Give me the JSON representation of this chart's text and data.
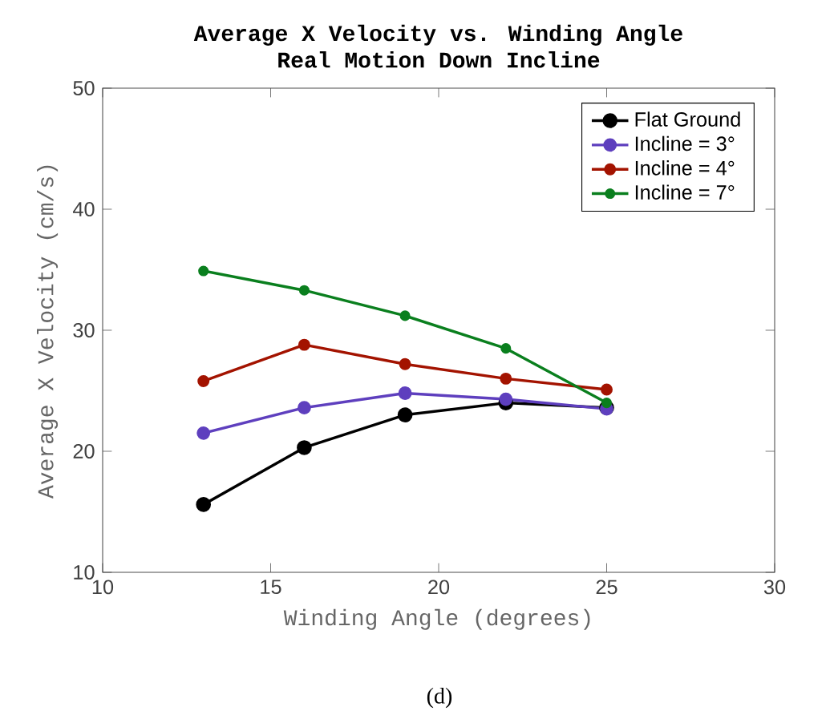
{
  "chart_data": {
    "type": "line",
    "title": "Average X Velocity vs. Winding Angle",
    "subtitle": "Real Motion Down Incline",
    "xlabel": "Winding Angle (degrees)",
    "ylabel": "Average X Velocity (cm/s)",
    "x": [
      13,
      16,
      19,
      22,
      25
    ],
    "series": [
      {
        "name": "Flat Ground",
        "color": "#000000",
        "values": [
          15.6,
          20.3,
          23.0,
          24.0,
          23.6
        ]
      },
      {
        "name": "Incline = 3°",
        "color": "#5e3fbe",
        "values": [
          21.5,
          23.6,
          24.8,
          24.3,
          23.5
        ]
      },
      {
        "name": "Incline = 4°",
        "color": "#a31300",
        "values": [
          25.8,
          28.8,
          27.2,
          26.0,
          25.1
        ]
      },
      {
        "name": "Incline = 7°",
        "color": "#0a7f1e",
        "values": [
          34.9,
          33.3,
          31.2,
          28.5,
          24.0
        ]
      }
    ],
    "xlim": [
      10,
      30
    ],
    "xticks": [
      10,
      15,
      20,
      25,
      30
    ],
    "ylim": [
      10,
      50
    ],
    "yticks": [
      10,
      20,
      30,
      40,
      50
    ],
    "legend": "top right",
    "marker": "circle",
    "line_style": "solid",
    "grid": false,
    "annotations": [
      "(d)"
    ]
  }
}
